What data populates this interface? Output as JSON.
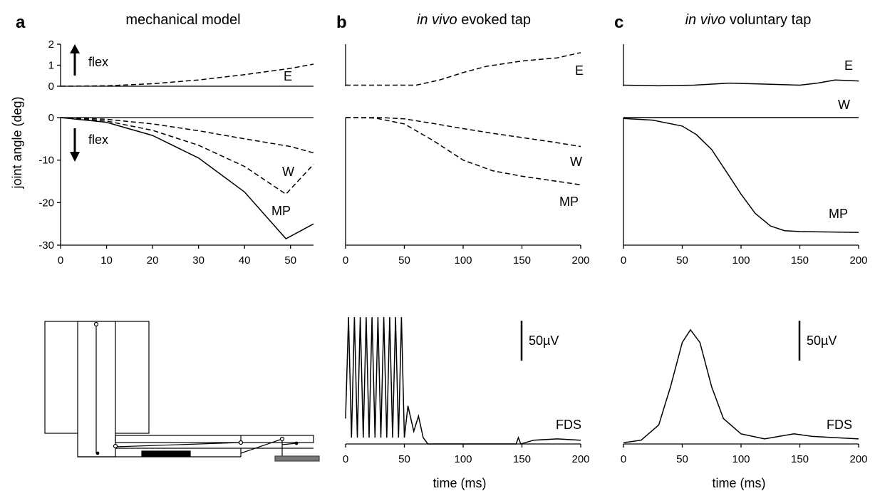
{
  "panels": {
    "a": {
      "letter": "a",
      "title": "mechanical model"
    },
    "b": {
      "letter": "b",
      "title_italic": "in vivo",
      "title_rest": " evoked tap"
    },
    "c": {
      "letter": "c",
      "title_italic": "in vivo",
      "title_rest": " voluntary tap"
    }
  },
  "labels": {
    "ylabel": "joint angle (deg)",
    "xlabel": "time (ms)",
    "flex": "flex",
    "scalebar": "50µV",
    "emg": "FDS"
  },
  "chart_data": [
    {
      "id": "a-E",
      "type": "line",
      "xlim": [
        0,
        55
      ],
      "ylim": [
        0,
        2
      ],
      "yticks": [
        "0",
        "1",
        "2"
      ],
      "series": [
        {
          "name": "E",
          "style": "dashed",
          "x": [
            0,
            10,
            20,
            30,
            40,
            50,
            55
          ],
          "y": [
            0,
            0.02,
            0.12,
            0.3,
            0.55,
            0.85,
            1.05
          ]
        }
      ]
    },
    {
      "id": "a-WMP",
      "type": "line",
      "xlim": [
        0,
        55
      ],
      "ylim": [
        -30,
        0
      ],
      "xticks": [
        "0",
        "10",
        "20",
        "30",
        "40",
        "50"
      ],
      "yticks": [
        "0",
        "-10",
        "-20",
        "-30"
      ],
      "series": [
        {
          "name": "W",
          "style": "dashed",
          "x": [
            0,
            10,
            20,
            30,
            40,
            50,
            55
          ],
          "y": [
            0,
            -0.4,
            -1.5,
            -3.1,
            -5.0,
            -6.8,
            -8.3
          ]
        },
        {
          "name": "",
          "style": "dashed",
          "x": [
            0,
            10,
            20,
            30,
            40,
            49,
            55
          ],
          "y": [
            0,
            -0.8,
            -3.0,
            -6.5,
            -11.5,
            -18.0,
            -11.0
          ]
        },
        {
          "name": "MP",
          "style": "solid",
          "x": [
            0,
            10,
            20,
            30,
            40,
            49,
            55
          ],
          "y": [
            0,
            -1.1,
            -4.2,
            -9.5,
            -17.5,
            -28.5,
            -25.0
          ]
        }
      ]
    },
    {
      "id": "b-E",
      "type": "line",
      "xlim": [
        0,
        200
      ],
      "ylim": [
        0,
        2
      ],
      "series": [
        {
          "name": "E",
          "style": "dashed",
          "x": [
            0,
            25,
            60,
            80,
            100,
            120,
            150,
            180,
            200
          ],
          "y": [
            0.05,
            0.05,
            0.05,
            0.3,
            0.65,
            0.95,
            1.2,
            1.35,
            1.6
          ]
        }
      ]
    },
    {
      "id": "b-WMP",
      "type": "line",
      "xlim": [
        0,
        200
      ],
      "ylim": [
        -30,
        0
      ],
      "xticks": [
        "0",
        "50",
        "100",
        "150",
        "200"
      ],
      "series": [
        {
          "name": "W",
          "style": "dashed",
          "x": [
            0,
            30,
            50,
            75,
            100,
            125,
            150,
            175,
            200
          ],
          "y": [
            0,
            0,
            -0.3,
            -1.4,
            -2.6,
            -3.7,
            -4.7,
            -5.7,
            -6.8
          ]
        },
        {
          "name": "MP",
          "style": "dashed",
          "x": [
            0,
            25,
            50,
            75,
            100,
            125,
            150,
            175,
            200
          ],
          "y": [
            0,
            -0.1,
            -1.5,
            -5.5,
            -10.0,
            -12.5,
            -13.8,
            -14.8,
            -15.8
          ]
        }
      ]
    },
    {
      "id": "c-E",
      "type": "line",
      "xlim": [
        0,
        200
      ],
      "ylim": [
        0,
        2
      ],
      "series": [
        {
          "name": "E",
          "style": "solid",
          "x": [
            0,
            30,
            60,
            90,
            120,
            150,
            165,
            180,
            200
          ],
          "y": [
            0.05,
            0.02,
            0.05,
            0.15,
            0.1,
            0.05,
            0.15,
            0.3,
            0.25
          ]
        }
      ]
    },
    {
      "id": "c-WMP",
      "type": "line",
      "xlim": [
        0,
        200
      ],
      "ylim": [
        -30,
        0
      ],
      "xticks": [
        "0",
        "50",
        "100",
        "150",
        "200"
      ],
      "series": [
        {
          "name": "W",
          "style": "solid",
          "x": [
            0,
            50,
            100,
            150,
            200
          ],
          "y": [
            0,
            0,
            0,
            0,
            0
          ]
        },
        {
          "name": "MP",
          "style": "solid",
          "x": [
            0,
            25,
            50,
            62,
            75,
            87,
            100,
            112,
            125,
            137,
            150,
            200
          ],
          "y": [
            -0.2,
            -0.6,
            -2.0,
            -4.0,
            -7.5,
            -12.5,
            -18.0,
            -22.5,
            -25.5,
            -26.6,
            -26.8,
            -27.0
          ]
        }
      ]
    },
    {
      "id": "b-EMG",
      "type": "line",
      "xlim": [
        0,
        200
      ],
      "xticks": [
        "0",
        "50",
        "100",
        "150",
        "200"
      ],
      "series": [
        {
          "name": "FDS",
          "style": "solid",
          "x": [
            0,
            2.5,
            5,
            7.5,
            10,
            12.5,
            15,
            17.5,
            20,
            22.5,
            25,
            27.5,
            30,
            32.5,
            35,
            37.5,
            40,
            42.5,
            45,
            47.5,
            50,
            53,
            58,
            62,
            66,
            70,
            100,
            145,
            147,
            149,
            160,
            180,
            200
          ],
          "y": [
            20,
            100,
            5,
            100,
            5,
            100,
            5,
            100,
            5,
            100,
            5,
            100,
            5,
            100,
            5,
            100,
            5,
            100,
            5,
            100,
            5,
            30,
            10,
            22,
            5,
            0,
            0,
            0,
            5,
            0,
            3,
            4,
            3
          ]
        }
      ]
    },
    {
      "id": "c-EMG",
      "type": "line",
      "xlim": [
        0,
        200
      ],
      "xticks": [
        "0",
        "50",
        "100",
        "150",
        "200"
      ],
      "series": [
        {
          "name": "FDS",
          "style": "solid",
          "x": [
            0,
            15,
            30,
            40,
            50,
            57,
            65,
            75,
            85,
            100,
            120,
            145,
            160,
            180,
            200
          ],
          "y": [
            1,
            3,
            15,
            45,
            80,
            90,
            80,
            45,
            20,
            8,
            4,
            8,
            6,
            5,
            4
          ]
        }
      ]
    }
  ]
}
